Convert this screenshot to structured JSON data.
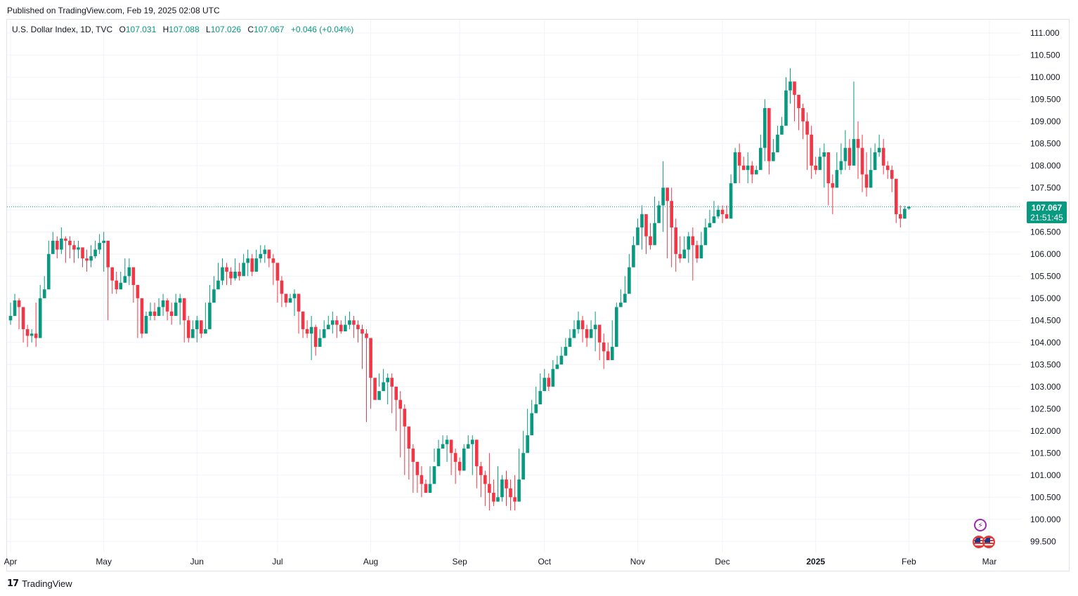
{
  "header": {
    "published": "Published on TradingView.com, Feb 19, 2025 02:08 UTC"
  },
  "legend": {
    "symbol": "U.S. Dollar Index, 1D, TVC",
    "open_label": "O",
    "open": "107.031",
    "high_label": "H",
    "high": "107.088",
    "low_label": "L",
    "low": "107.026",
    "close_label": "C",
    "close": "107.067",
    "change": "+0.046 (+0.04%)"
  },
  "last_price": {
    "price": "107.067",
    "countdown": "21:51:45"
  },
  "footer": {
    "brand": "TradingView"
  },
  "colors": {
    "up": "#089981",
    "down": "#f23645",
    "grid": "#f0f3fa",
    "price_line": "#089981"
  },
  "icons": {
    "event_lightning": "lightning-icon",
    "event_flag": "us-flag-icon",
    "logo": "tradingview-logo-icon"
  },
  "chart_data": {
    "type": "candlestick",
    "title": "U.S. Dollar Index, 1D, TVC",
    "xlabel": "",
    "ylabel": "",
    "ylim": [
      99.25,
      111.3
    ],
    "y_ticks": [
      "111.000",
      "110.500",
      "110.000",
      "109.500",
      "109.000",
      "108.500",
      "108.000",
      "107.500",
      "107.000",
      "106.500",
      "106.000",
      "105.500",
      "105.000",
      "104.500",
      "104.000",
      "103.500",
      "103.000",
      "102.500",
      "102.000",
      "101.500",
      "101.000",
      "100.500",
      "100.000",
      "99.500"
    ],
    "x_ticks": [
      {
        "label": "Apr",
        "bar": 0
      },
      {
        "label": "May",
        "bar": 22
      },
      {
        "label": "Jun",
        "bar": 44
      },
      {
        "label": "Jul",
        "bar": 63
      },
      {
        "label": "Aug",
        "bar": 85
      },
      {
        "label": "Sep",
        "bar": 106
      },
      {
        "label": "Oct",
        "bar": 126
      },
      {
        "label": "Nov",
        "bar": 148
      },
      {
        "label": "Dec",
        "bar": 168
      },
      {
        "label": "2025",
        "bar": 190,
        "bold": true
      },
      {
        "label": "Feb",
        "bar": 212
      },
      {
        "label": "Mar",
        "bar": 231
      }
    ],
    "grid": true,
    "last_bar": 221,
    "closes": [
      104.6,
      104.95,
      104.8,
      104.3,
      104.15,
      104.2,
      104.1,
      105.0,
      105.2,
      106.0,
      106.3,
      106.1,
      106.35,
      106.3,
      106.2,
      106.1,
      106.15,
      105.9,
      105.85,
      105.95,
      106.1,
      106.25,
      106.3,
      105.7,
      105.4,
      105.2,
      105.35,
      105.5,
      105.7,
      105.3,
      105.0,
      104.2,
      104.6,
      104.7,
      104.6,
      104.8,
      104.95,
      104.7,
      104.6,
      104.9,
      105.0,
      104.5,
      104.1,
      104.3,
      104.5,
      104.2,
      104.3,
      104.9,
      105.2,
      105.4,
      105.7,
      105.6,
      105.45,
      105.6,
      105.5,
      105.8,
      105.9,
      105.6,
      105.9,
      106.0,
      106.1,
      105.9,
      105.8,
      105.4,
      105.1,
      104.9,
      105.0,
      105.1,
      104.7,
      104.3,
      104.2,
      104.35,
      103.9,
      104.1,
      104.3,
      104.4,
      104.5,
      104.4,
      104.25,
      104.4,
      104.5,
      104.4,
      104.3,
      104.2,
      104.1,
      103.2,
      102.7,
      102.9,
      103.1,
      103.2,
      103.0,
      102.7,
      102.5,
      102.1,
      101.6,
      101.3,
      101.0,
      100.8,
      100.6,
      100.8,
      101.2,
      101.6,
      101.7,
      101.8,
      101.5,
      101.3,
      101.1,
      101.6,
      101.7,
      101.8,
      101.2,
      101.0,
      100.8,
      100.6,
      100.4,
      100.5,
      100.9,
      100.7,
      100.5,
      100.4,
      100.9,
      101.5,
      101.9,
      102.4,
      102.6,
      102.9,
      103.2,
      103.0,
      103.4,
      103.5,
      103.7,
      103.9,
      104.1,
      104.3,
      104.5,
      104.3,
      104.1,
      104.3,
      104.4,
      104.0,
      103.8,
      103.6,
      103.9,
      104.8,
      104.9,
      105.1,
      105.7,
      106.2,
      106.6,
      106.9,
      106.4,
      106.2,
      106.7,
      107.1,
      107.5,
      107.2,
      106.6,
      106.0,
      105.9,
      106.1,
      106.4,
      106.2,
      105.9,
      106.2,
      106.6,
      106.7,
      106.85,
      107.0,
      106.9,
      106.8,
      107.6,
      108.3,
      108.0,
      107.9,
      108.0,
      107.8,
      107.9,
      108.4,
      109.3,
      108.1,
      108.3,
      108.7,
      108.9,
      109.7,
      109.9,
      109.6,
      109.3,
      109.0,
      108.7,
      108.0,
      107.9,
      108.2,
      108.3,
      107.6,
      107.5,
      107.9,
      108.1,
      108.4,
      108.0,
      108.6,
      108.4,
      107.8,
      107.5,
      107.9,
      108.3,
      108.4,
      108.0,
      107.9,
      107.7,
      106.9,
      106.8,
      107.021,
      107.067
    ],
    "highs": [
      104.9,
      105.1,
      105.0,
      104.5,
      104.4,
      104.3,
      104.9,
      105.3,
      105.5,
      106.3,
      106.5,
      106.4,
      106.6,
      106.4,
      106.4,
      106.3,
      106.3,
      106.1,
      106.1,
      106.2,
      106.3,
      106.45,
      106.5,
      106.3,
      105.6,
      105.6,
      105.6,
      105.9,
      105.9,
      105.6,
      105.3,
      104.8,
      104.7,
      104.9,
      104.9,
      105.0,
      105.1,
      105.0,
      104.9,
      105.1,
      105.1,
      105.0,
      104.6,
      104.5,
      104.6,
      104.5,
      104.9,
      105.3,
      105.5,
      105.8,
      105.9,
      105.8,
      105.7,
      105.9,
      105.8,
      106.0,
      106.1,
      106.0,
      106.1,
      106.2,
      106.2,
      106.1,
      106.0,
      105.8,
      105.5,
      105.1,
      105.1,
      105.2,
      105.1,
      104.7,
      104.5,
      104.6,
      104.4,
      104.3,
      104.5,
      104.6,
      104.7,
      104.6,
      104.5,
      104.6,
      104.7,
      104.6,
      104.5,
      104.4,
      104.3,
      104.1,
      103.0,
      103.3,
      103.4,
      103.3,
      103.3,
      103.0,
      102.9,
      102.6,
      102.1,
      101.7,
      101.3,
      101.2,
      100.9,
      101.2,
      101.6,
      101.8,
      101.9,
      101.9,
      101.8,
      101.6,
      101.4,
      101.7,
      101.9,
      101.9,
      101.8,
      101.3,
      101.1,
      101.5,
      100.9,
      101.2,
      101.0,
      101.1,
      100.9,
      101.0,
      101.6,
      102.0,
      102.5,
      102.7,
      103.0,
      103.3,
      103.4,
      103.3,
      103.6,
      103.7,
      103.9,
      104.1,
      104.3,
      104.5,
      104.7,
      104.6,
      104.4,
      104.5,
      104.7,
      104.4,
      104.2,
      104.0,
      104.5,
      104.9,
      105.2,
      105.5,
      106.0,
      106.4,
      106.8,
      107.1,
      106.9,
      106.7,
      107.3,
      107.2,
      108.1,
      107.5,
      107.5,
      106.8,
      106.4,
      106.4,
      106.5,
      106.6,
      106.3,
      106.5,
      106.8,
      107.0,
      107.2,
      107.1,
      107.1,
      107.1,
      107.8,
      108.4,
      108.5,
      108.2,
      108.3,
      108.1,
      108.0,
      108.7,
      109.5,
      109.3,
      108.6,
      108.9,
      109.1,
      110.0,
      110.2,
      109.8,
      109.5,
      109.4,
      109.2,
      108.9,
      108.2,
      108.4,
      108.5,
      108.3,
      107.8,
      108.3,
      108.5,
      108.8,
      108.6,
      109.9,
      109.0,
      108.7,
      108.3,
      108.4,
      108.5,
      108.7,
      108.6,
      108.1,
      108.0,
      107.7,
      107.1,
      107.09,
      107.088
    ],
    "lows": [
      104.4,
      104.6,
      104.3,
      104.0,
      103.9,
      104.0,
      103.9,
      104.9,
      105.0,
      105.9,
      106.1,
      105.9,
      106.0,
      105.8,
      105.9,
      105.8,
      105.9,
      105.7,
      105.6,
      105.7,
      105.9,
      106.0,
      105.6,
      104.5,
      105.1,
      105.1,
      105.2,
      105.4,
      105.3,
      104.9,
      104.1,
      104.1,
      104.5,
      104.5,
      104.5,
      104.7,
      104.6,
      104.5,
      104.4,
      104.7,
      104.4,
      104.0,
      104.0,
      104.1,
      104.0,
      104.1,
      104.2,
      104.8,
      105.0,
      105.3,
      105.3,
      105.3,
      105.3,
      105.4,
      105.4,
      105.6,
      105.5,
      105.5,
      105.8,
      105.8,
      105.8,
      105.7,
      105.3,
      104.9,
      104.8,
      104.8,
      104.9,
      104.6,
      104.2,
      104.1,
      104.1,
      103.6,
      103.7,
      104.0,
      104.3,
      104.3,
      104.2,
      104.1,
      104.2,
      104.4,
      104.3,
      104.1,
      104.0,
      103.4,
      102.2,
      102.5,
      102.8,
      103.0,
      102.9,
      102.6,
      102.4,
      102.0,
      101.4,
      101.0,
      100.9,
      100.6,
      100.6,
      100.5,
      100.6,
      100.8,
      101.3,
      101.5,
      101.6,
      101.3,
      101.0,
      100.8,
      101.0,
      101.5,
      101.6,
      101.0,
      100.7,
      100.5,
      100.3,
      100.2,
      100.3,
      100.4,
      100.4,
      100.3,
      100.2,
      100.2,
      100.9,
      101.4,
      101.8,
      102.3,
      102.5,
      102.8,
      102.9,
      102.9,
      103.3,
      103.4,
      103.6,
      103.8,
      104.0,
      104.2,
      104.2,
      104.0,
      103.9,
      104.2,
      103.8,
      103.6,
      103.4,
      103.6,
      103.8,
      104.7,
      104.8,
      105.0,
      105.6,
      106.1,
      106.5,
      106.1,
      106.0,
      106.1,
      106.6,
      107.0,
      106.5,
      105.9,
      105.7,
      105.6,
      105.8,
      106.1,
      105.8,
      105.4,
      105.8,
      106.1,
      106.5,
      106.6,
      106.7,
      106.8,
      106.7,
      106.8,
      107.5,
      107.7,
      107.6,
      107.9,
      107.6,
      107.6,
      107.8,
      108.2,
      108.1,
      107.8,
      108.2,
      108.6,
      108.7,
      109.5,
      109.4,
      109.0,
      108.8,
      108.6,
      107.9,
      107.7,
      107.8,
      108.1,
      107.5,
      107.1,
      106.9,
      107.5,
      107.8,
      107.9,
      107.9,
      108.3,
      107.7,
      107.4,
      107.3,
      107.5,
      107.9,
      108.2,
      107.8,
      107.7,
      107.4,
      106.7,
      106.6,
      106.8,
      107.0,
      107.026
    ],
    "opens": [
      104.5,
      104.6,
      104.95,
      104.8,
      104.3,
      104.15,
      104.2,
      104.1,
      105.0,
      105.2,
      106.0,
      106.3,
      106.1,
      106.35,
      106.3,
      106.2,
      106.1,
      106.15,
      105.9,
      105.85,
      105.95,
      106.1,
      106.25,
      106.3,
      105.7,
      105.4,
      105.2,
      105.35,
      105.5,
      105.7,
      105.3,
      105.0,
      104.2,
      104.6,
      104.7,
      104.6,
      104.8,
      104.95,
      104.7,
      104.6,
      104.9,
      105.0,
      104.5,
      104.1,
      104.3,
      104.5,
      104.2,
      104.3,
      104.9,
      105.2,
      105.4,
      105.7,
      105.6,
      105.45,
      105.6,
      105.5,
      105.8,
      105.9,
      105.6,
      105.9,
      106.0,
      106.1,
      105.9,
      105.8,
      105.4,
      105.1,
      104.9,
      105.0,
      105.1,
      104.7,
      104.3,
      104.2,
      104.35,
      103.9,
      104.1,
      104.3,
      104.4,
      104.5,
      104.4,
      104.25,
      104.4,
      104.5,
      104.4,
      104.3,
      104.2,
      104.1,
      103.2,
      102.7,
      102.9,
      103.1,
      103.2,
      103.0,
      102.7,
      102.5,
      102.1,
      101.6,
      101.3,
      101.0,
      100.8,
      100.6,
      100.8,
      101.2,
      101.6,
      101.7,
      101.8,
      101.5,
      101.3,
      101.1,
      101.6,
      101.7,
      101.8,
      101.2,
      101.0,
      100.8,
      100.6,
      100.4,
      100.5,
      100.9,
      100.7,
      100.5,
      100.4,
      100.9,
      101.5,
      101.9,
      102.4,
      102.6,
      102.9,
      103.2,
      103.0,
      103.4,
      103.5,
      103.7,
      103.9,
      104.1,
      104.3,
      104.5,
      104.3,
      104.1,
      104.3,
      104.4,
      104.0,
      103.8,
      103.6,
      103.9,
      104.8,
      104.9,
      105.1,
      105.7,
      106.2,
      106.6,
      106.9,
      106.4,
      106.2,
      106.7,
      107.1,
      107.5,
      107.2,
      106.6,
      106.0,
      105.9,
      106.1,
      106.4,
      106.2,
      105.9,
      106.2,
      106.6,
      106.7,
      106.85,
      107.0,
      106.9,
      106.8,
      107.6,
      108.3,
      108.0,
      107.9,
      108.0,
      107.8,
      107.9,
      108.4,
      109.3,
      108.1,
      108.3,
      108.7,
      108.9,
      109.7,
      109.9,
      109.6,
      109.3,
      109.0,
      108.7,
      108.0,
      107.9,
      108.2,
      108.3,
      107.6,
      107.5,
      107.9,
      108.1,
      108.4,
      108.0,
      108.6,
      108.4,
      107.8,
      107.5,
      107.9,
      108.3,
      108.4,
      108.0,
      107.9,
      107.7,
      106.9,
      106.8,
      107.031
    ]
  }
}
